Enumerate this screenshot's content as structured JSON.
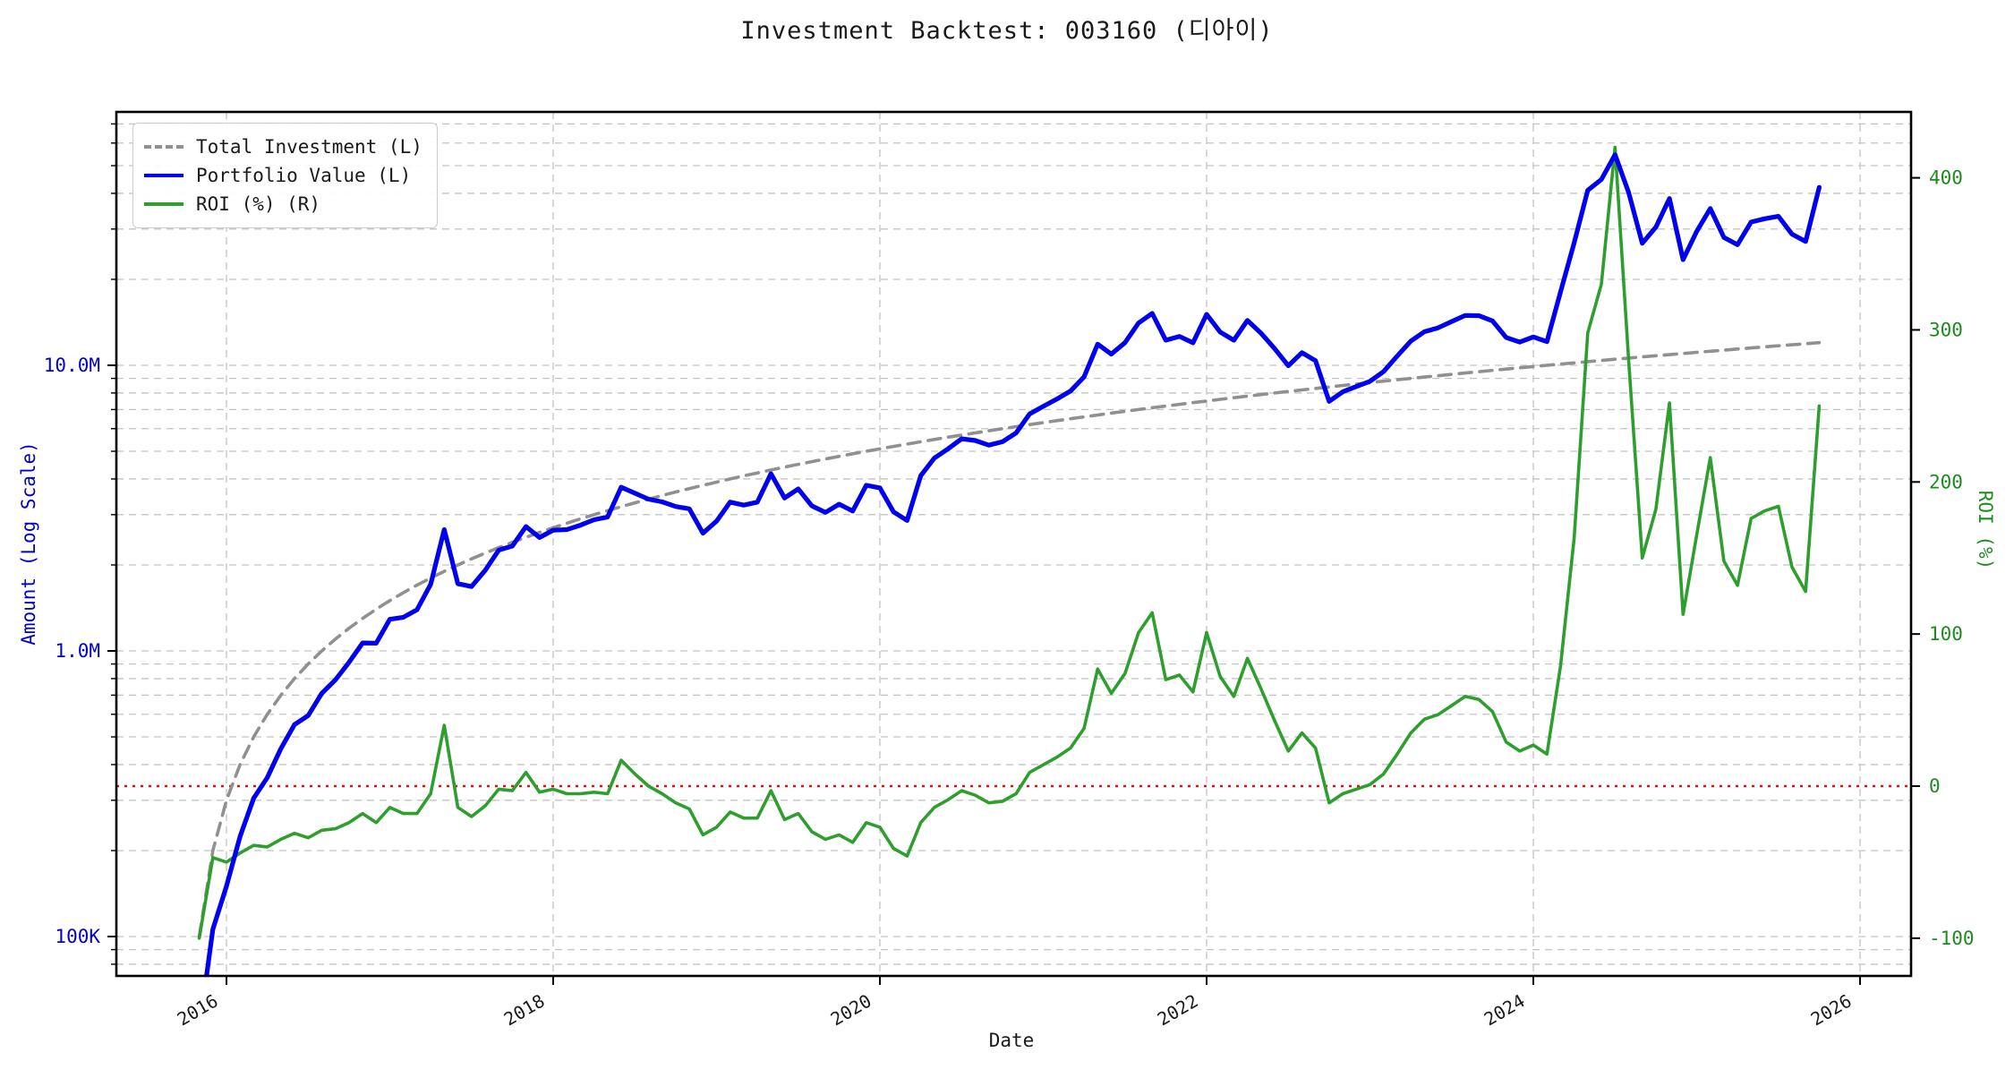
{
  "title": "Investment Backtest: 003160 (디아이)",
  "axes": {
    "x": {
      "label": "Date",
      "tick_years": [
        2016,
        2018,
        2020,
        2022,
        2024,
        2026
      ],
      "tick_color": "#1a1a1a"
    },
    "left": {
      "label": "Amount (Log Scale)",
      "color": "#0202cc",
      "major_ticks": [
        {
          "value": 100000,
          "label": "100K"
        },
        {
          "value": 1000000,
          "label": "1.0M"
        },
        {
          "value": 10000000,
          "label": "10.0M"
        }
      ],
      "minor_tick_values": [
        80000,
        90000,
        200000,
        300000,
        400000,
        500000,
        600000,
        700000,
        800000,
        900000,
        2000000,
        3000000,
        4000000,
        5000000,
        6000000,
        7000000,
        8000000,
        9000000,
        20000000,
        30000000,
        40000000,
        50000000,
        60000000,
        70000000
      ]
    },
    "right": {
      "label": "ROI (%)",
      "color": "#1e8b1e",
      "ticks": [
        -100,
        0,
        100,
        200,
        300,
        400
      ]
    }
  },
  "legend": [
    {
      "label": "Total Investment (L)",
      "color": "#909090",
      "style": "dashed"
    },
    {
      "label": "Portfolio Value (L)",
      "color": "#0000ee",
      "style": "solid"
    },
    {
      "label": "ROI (%) (R)",
      "color": "#2e9e2e",
      "style": "solid"
    }
  ],
  "styles": {
    "grid_color": "#c4c4c4",
    "spine_color": "#000000",
    "zero_line_color": "#e01010",
    "investment_color": "#909090",
    "portfolio_color": "#0000ee",
    "roi_color": "#2e9e2e"
  },
  "chart_data": {
    "type": "line",
    "title": "Investment Backtest: 003160 (디아이)",
    "xlabel": "Date",
    "ylabel_left": "Amount (Log Scale)",
    "ylabel_right": "ROI (%)",
    "x_start_month": "2015-11",
    "x_end_month": "2025-10",
    "points": 120,
    "monthly_contribution": 100000,
    "investment_rule": "total_investment[n] = (n+1) * 100000 (KRW), n = 0..119",
    "portfolio_rule": "portfolio_value[n] = total_investment[n] * (1 + roi_percent[n]/100)",
    "left_axis": {
      "scale": "log",
      "labeled_ticks": [
        100000,
        1000000,
        10000000
      ]
    },
    "right_axis": {
      "scale": "linear",
      "ticks": [
        -100,
        0,
        100,
        200,
        300,
        400
      ],
      "zero_line": true
    },
    "grid": true,
    "legend_position": "upper left",
    "series": [
      {
        "name": "Total Investment (L)",
        "axis": "left",
        "derived": "investment_rule"
      },
      {
        "name": "Portfolio Value (L)",
        "axis": "left",
        "derived": "portfolio_rule"
      },
      {
        "name": "ROI (%) (R)",
        "axis": "right",
        "values_key": "roi_percent"
      }
    ],
    "roi_percent": [
      -100,
      -47,
      -50,
      -44,
      -39,
      -40,
      -35,
      -31,
      -34,
      -29,
      -28,
      -24,
      -18,
      -24,
      -14,
      -18,
      -18,
      -5,
      40,
      -14,
      -20,
      -13,
      -2,
      -3,
      9,
      -4,
      -2,
      -5,
      -5,
      -4,
      -5,
      17,
      8,
      0,
      -5,
      -11,
      -15,
      -32,
      -27,
      -17,
      -21,
      -21,
      -3,
      -22,
      -18,
      -30,
      -35,
      -32,
      -37,
      -24,
      -27,
      -41,
      -46,
      -24,
      -14,
      -9,
      -3,
      -6,
      -11,
      -10,
      -5,
      9,
      14,
      19,
      25,
      38,
      77,
      61,
      74,
      101,
      114,
      70,
      73,
      62,
      101,
      72,
      59,
      84,
      64,
      43,
      23,
      35,
      25,
      -11,
      -5,
      -2,
      1,
      8,
      21,
      35,
      44,
      47,
      53,
      59,
      57,
      49,
      29,
      23,
      27,
      21,
      79,
      163,
      298,
      330,
      420,
      280,
      150,
      182,
      252,
      113,
      165,
      216,
      148,
      132,
      176,
      181,
      184,
      144,
      128,
      250
    ]
  }
}
